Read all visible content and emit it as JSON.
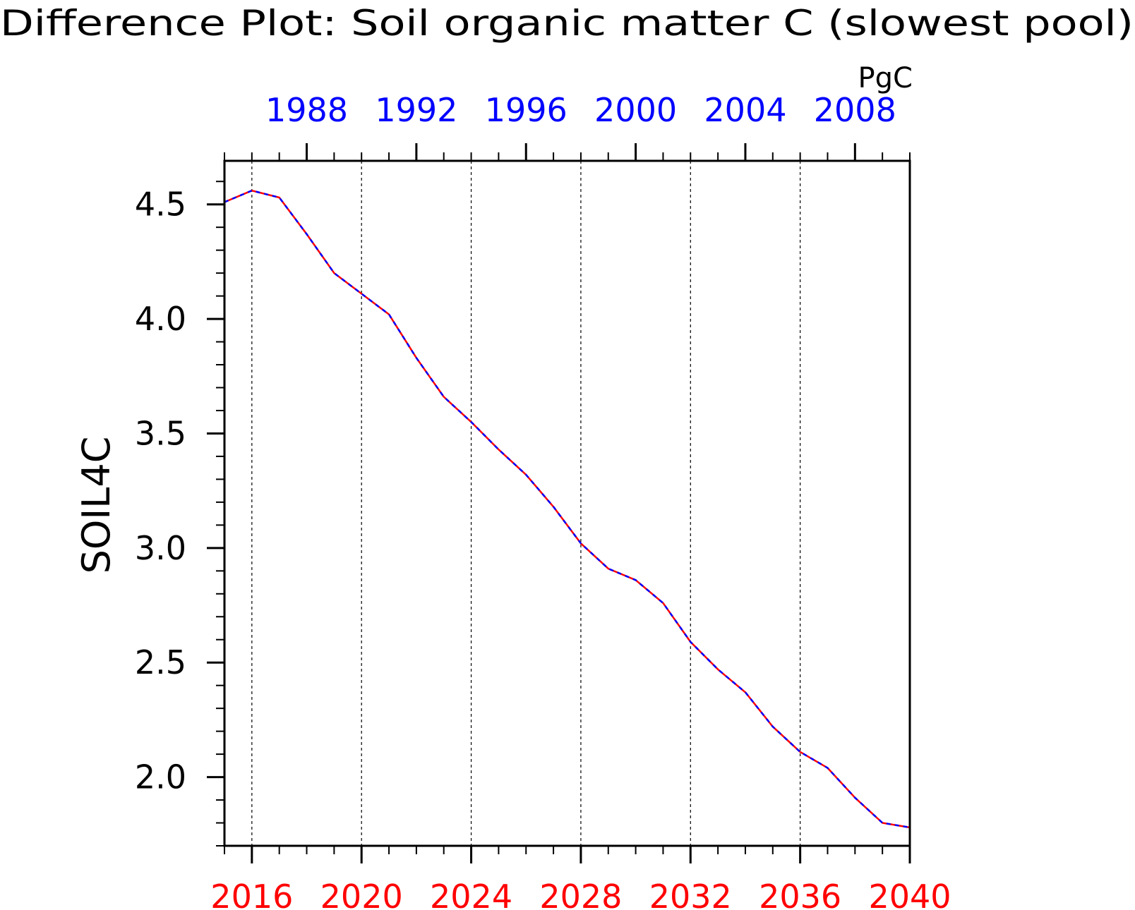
{
  "chart_data": {
    "type": "line",
    "title": "Difference Plot: Soil organic matter C (slowest pool)",
    "ylabel": "SOIL4C",
    "units": "PgC",
    "ylim": [
      1.7,
      4.69
    ],
    "yticks": [
      2.0,
      2.5,
      3.0,
      3.5,
      4.0,
      4.5
    ],
    "ytick_labels": [
      "2.0",
      "2.5",
      "3.0",
      "3.5",
      "4.0",
      "4.5"
    ],
    "grid": "dashed vertical lines at bottom-axis major ticks",
    "legend": "none",
    "x_bottom": {
      "range": [
        2015,
        2040
      ],
      "ticks": [
        2016,
        2020,
        2024,
        2028,
        2032,
        2036,
        2040
      ],
      "tick_labels": [
        "2016",
        "2020",
        "2024",
        "2028",
        "2032",
        "2036",
        "2040"
      ],
      "color": "#ff0000"
    },
    "x_top": {
      "range": [
        1985,
        2010
      ],
      "ticks": [
        1988,
        1992,
        1996,
        2000,
        2004,
        2008
      ],
      "tick_labels": [
        "1988",
        "1992",
        "1996",
        "2000",
        2004,
        "2008"
      ],
      "color": "#0000ff"
    },
    "x": [
      2015,
      2016,
      2017,
      2018,
      2019,
      2020,
      2021,
      2022,
      2023,
      2024,
      2025,
      2026,
      2027,
      2028,
      2029,
      2030,
      2031,
      2032,
      2033,
      2034,
      2035,
      2036,
      2037,
      2038,
      2039,
      2040
    ],
    "series": [
      {
        "color": "#ff0000",
        "style": "solid",
        "values": [
          4.51,
          4.56,
          4.53,
          4.37,
          4.2,
          4.11,
          4.02,
          3.83,
          3.66,
          3.55,
          3.43,
          3.32,
          3.18,
          3.02,
          2.91,
          2.86,
          2.76,
          2.59,
          2.47,
          2.37,
          2.22,
          2.11,
          2.04,
          1.91,
          1.8,
          1.78
        ]
      },
      {
        "color": "#0000ff",
        "style": "dashed",
        "values": [
          4.51,
          4.56,
          4.53,
          4.37,
          4.2,
          4.11,
          4.02,
          3.83,
          3.66,
          3.55,
          3.43,
          3.32,
          3.18,
          3.02,
          2.91,
          2.86,
          2.76,
          2.59,
          2.47,
          2.37,
          2.22,
          2.11,
          2.04,
          1.91,
          1.8,
          1.78
        ]
      }
    ]
  }
}
